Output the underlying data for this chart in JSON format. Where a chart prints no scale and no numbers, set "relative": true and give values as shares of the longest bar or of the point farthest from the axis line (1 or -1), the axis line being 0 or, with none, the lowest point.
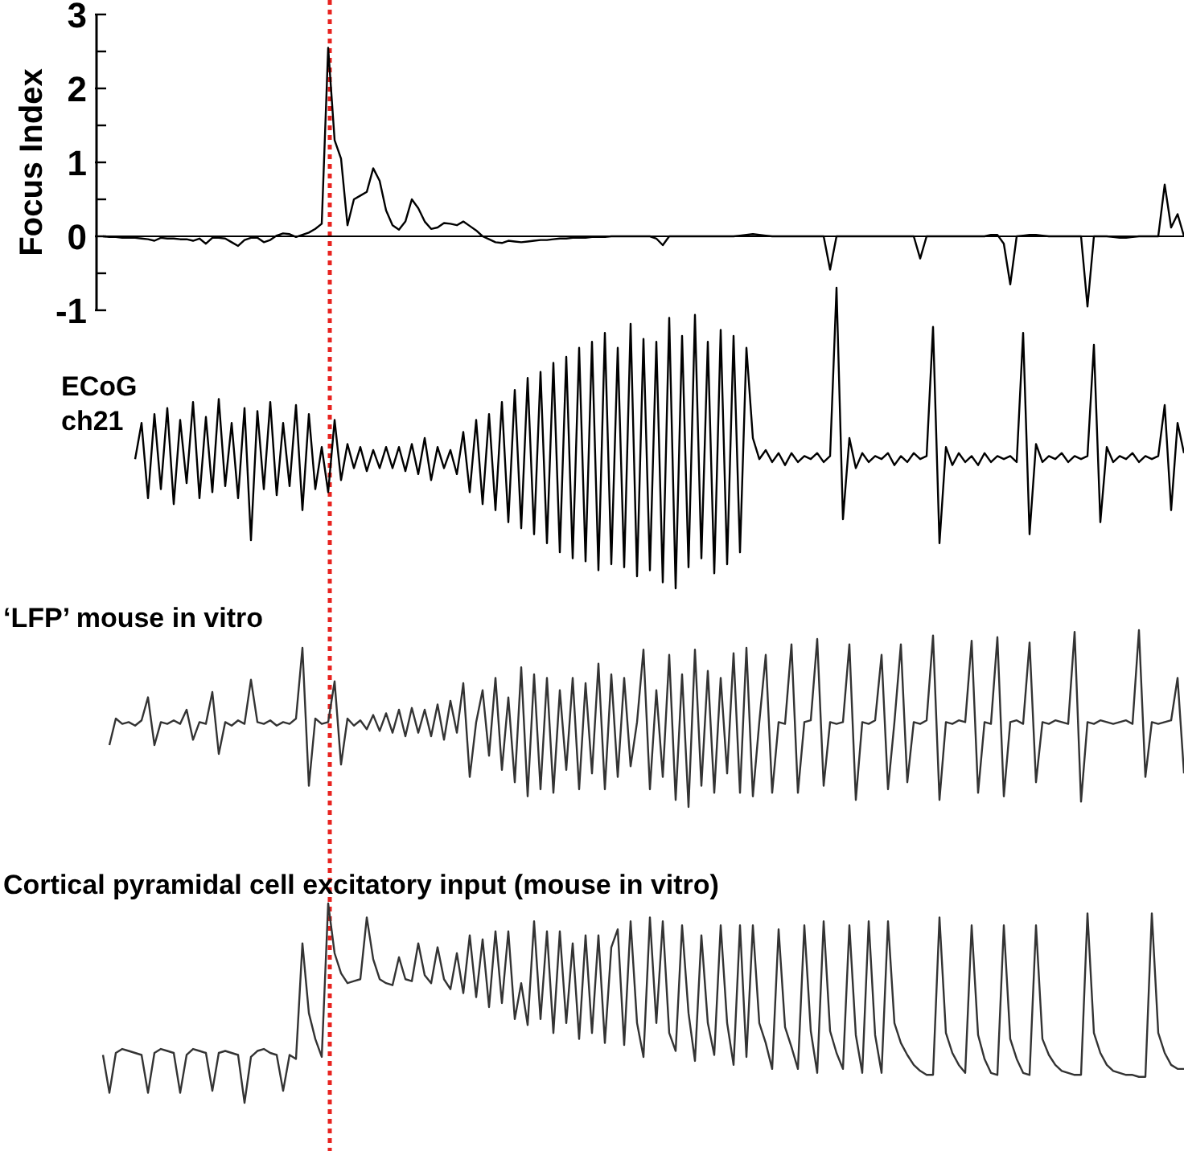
{
  "chart_data": [
    {
      "type": "line",
      "ylabel": "Focus Index",
      "categories": [
        null,
        null,
        null,
        null,
        null,
        null,
        null,
        null,
        null,
        null,
        null,
        null,
        null,
        null,
        null,
        null,
        null,
        null,
        null,
        null,
        null,
        null,
        null,
        null,
        null,
        null,
        null,
        null,
        null,
        null,
        null,
        null,
        null,
        null,
        null,
        null,
        null,
        null,
        null,
        null,
        null,
        null,
        null,
        null,
        null,
        null,
        null,
        null,
        null,
        null,
        null,
        null,
        null,
        null,
        null,
        null,
        null,
        null,
        null,
        null,
        null,
        null,
        null,
        null,
        null,
        null,
        null,
        null,
        null,
        null,
        null,
        null,
        null,
        null,
        null,
        null,
        null,
        null,
        null,
        null,
        null,
        null,
        null,
        null,
        null,
        null,
        null,
        null,
        null,
        null,
        null,
        null,
        null,
        null,
        null,
        null,
        null,
        null,
        null,
        null,
        null,
        null,
        null,
        null,
        null,
        null,
        null,
        null,
        null,
        null,
        null,
        null,
        null,
        null,
        null,
        null,
        null,
        null,
        null,
        null,
        null,
        null,
        null,
        null,
        null,
        null,
        null,
        null,
        null,
        null,
        null,
        null,
        null,
        null,
        null,
        null,
        null,
        null,
        null,
        null,
        null,
        null,
        null,
        null,
        null,
        null,
        null,
        null,
        null,
        null,
        null,
        null,
        null,
        null,
        null,
        null,
        null,
        null,
        null,
        null,
        null,
        null,
        null,
        null,
        null,
        null,
        null,
        null,
        null,
        null
      ],
      "ylim": [
        -1,
        3
      ],
      "yticks": [
        -1,
        {
          "value": -0.5,
          "label": null
        },
        0,
        {
          "value": 0.5,
          "label": null
        },
        1,
        {
          "value": 1.5,
          "label": null
        },
        2,
        {
          "value": 2.5,
          "label": null
        },
        3
      ],
      "tick_labels": "y",
      "series": [
        {
          "color": "#000000",
          "values": [
            null,
            0,
            -0.01,
            -0.01,
            -0.02,
            -0.02,
            -0.02,
            -0.03,
            -0.04,
            -0.06,
            -0.02,
            -0.03,
            -0.03,
            -0.04,
            -0.04,
            -0.06,
            -0.03,
            -0.1,
            -0.02,
            -0.02,
            -0.03,
            -0.08,
            -0.13,
            -0.05,
            -0.02,
            -0.02,
            -0.08,
            -0.05,
            0.01,
            0.04,
            0.03,
            -0.01,
            0.02,
            0.05,
            0.1,
            0.17,
            2.55,
            1.3,
            1.05,
            0.15,
            0.5,
            0.55,
            0.6,
            0.92,
            0.75,
            0.35,
            0.15,
            0.09,
            0.2,
            0.5,
            0.38,
            0.2,
            0.1,
            0.12,
            0.18,
            0.17,
            0.15,
            0.2,
            0.14,
            0.08,
            0,
            -0.04,
            -0.08,
            -0.09,
            -0.06,
            -0.07,
            -0.08,
            -0.07,
            -0.06,
            -0.05,
            -0.05,
            -0.04,
            -0.03,
            -0.03,
            -0.02,
            -0.02,
            -0.02,
            -0.01,
            -0.01,
            -0.01,
            0,
            0,
            0,
            0,
            0,
            0,
            0,
            -0.03,
            -0.12,
            0,
            0,
            0,
            0,
            0,
            0,
            0,
            0,
            0,
            0,
            0,
            0.01,
            0.02,
            0.03,
            0.02,
            0.01,
            0,
            0,
            0,
            0,
            0,
            0,
            0,
            0,
            0,
            -0.45,
            0,
            0,
            0,
            0,
            0,
            0,
            0,
            0,
            0,
            0,
            0,
            0,
            0,
            -0.3,
            0,
            0,
            0,
            0,
            0,
            0,
            0,
            0,
            0,
            0,
            0.02,
            0.02,
            -0.1,
            -0.65,
            0,
            0.01,
            0.02,
            0.02,
            0.01,
            0,
            0,
            0,
            0,
            0,
            0,
            -0.95,
            0,
            0,
            0,
            -0.01,
            -0.02,
            -0.02,
            -0.01,
            0,
            0,
            0,
            0,
            0.7,
            0.12,
            0.3,
            0
          ]
        }
      ]
    },
    {
      "type": "line",
      "title": "ECoG ch21",
      "relative": true,
      "categories": [
        null,
        null,
        null,
        null,
        null,
        null,
        null,
        null,
        null,
        null,
        null,
        null,
        null,
        null,
        null,
        null,
        null,
        null,
        null,
        null,
        null,
        null,
        null,
        null,
        null,
        null,
        null,
        null,
        null,
        null,
        null,
        null,
        null,
        null,
        null,
        null,
        null,
        null,
        null,
        null,
        null,
        null,
        null,
        null,
        null,
        null,
        null,
        null,
        null,
        null,
        null,
        null,
        null,
        null,
        null,
        null,
        null,
        null,
        null,
        null,
        null,
        null,
        null,
        null,
        null,
        null,
        null,
        null,
        null,
        null,
        null,
        null,
        null,
        null,
        null,
        null,
        null,
        null,
        null,
        null,
        null,
        null,
        null,
        null,
        null,
        null,
        null,
        null,
        null,
        null,
        null,
        null,
        null,
        null,
        null,
        null,
        null,
        null,
        null,
        null,
        null,
        null,
        null,
        null,
        null,
        null,
        null,
        null,
        null,
        null,
        null,
        null,
        null,
        null,
        null,
        null,
        null,
        null,
        null,
        null,
        null,
        null,
        null,
        null,
        null,
        null,
        null,
        null,
        null,
        null,
        null,
        null,
        null,
        null,
        null,
        null,
        null,
        null,
        null,
        null,
        null,
        null,
        null,
        null,
        null,
        null,
        null,
        null,
        null,
        null,
        null,
        null,
        null,
        null,
        null,
        null,
        null,
        null,
        null,
        null,
        null,
        null,
        null,
        null,
        null,
        null,
        null,
        null,
        null,
        null
      ],
      "series": [
        {
          "color": "#000000",
          "values": [
            null,
            null,
            null,
            null,
            null,
            null,
            0.43,
            0.55,
            0.3,
            0.58,
            0.33,
            0.6,
            0.28,
            0.56,
            0.35,
            0.62,
            0.3,
            0.57,
            0.32,
            0.63,
            0.34,
            0.55,
            0.3,
            0.6,
            0.16,
            0.59,
            0.33,
            0.62,
            0.31,
            0.55,
            0.34,
            0.61,
            0.26,
            0.58,
            0.33,
            0.47,
            0.32,
            0.56,
            0.36,
            0.48,
            0.4,
            0.47,
            0.39,
            0.46,
            0.4,
            0.47,
            0.4,
            0.47,
            0.39,
            0.48,
            0.38,
            0.5,
            0.36,
            0.47,
            0.4,
            0.46,
            0.38,
            0.52,
            0.32,
            0.56,
            0.28,
            0.58,
            0.26,
            0.62,
            0.22,
            0.66,
            0.2,
            0.7,
            0.18,
            0.72,
            0.15,
            0.75,
            0.12,
            0.77,
            0.1,
            0.8,
            0.09,
            0.82,
            0.06,
            0.85,
            0.08,
            0.8,
            0.07,
            0.88,
            0.04,
            0.83,
            0.06,
            0.82,
            0.02,
            0.9,
            0,
            0.84,
            0.07,
            0.91,
            0.1,
            0.82,
            0.05,
            0.86,
            0.08,
            0.84,
            0.12,
            0.8,
            0.5,
            0.43,
            0.46,
            0.42,
            0.45,
            0.41,
            0.45,
            0.42,
            0.44,
            0.43,
            0.45,
            0.42,
            0.44,
            1,
            0.23,
            0.5,
            0.4,
            0.45,
            0.42,
            0.44,
            0.43,
            0.45,
            0.41,
            0.44,
            0.42,
            0.45,
            0.43,
            0.44,
            0.87,
            0.15,
            0.47,
            0.41,
            0.45,
            0.42,
            0.44,
            0.41,
            0.45,
            0.42,
            0.44,
            0.43,
            0.44,
            0.42,
            0.85,
            0.18,
            0.48,
            0.42,
            0.44,
            0.43,
            0.45,
            0.42,
            0.44,
            0.43,
            0.44,
            0.81,
            0.22,
            0.47,
            0.42,
            0.44,
            0.43,
            0.45,
            0.42,
            0.44,
            0.43,
            0.44,
            0.61,
            0.26,
            0.55,
            0.45
          ]
        }
      ]
    },
    {
      "type": "line",
      "title": "‘LFP’ mouse in vitro",
      "relative": true,
      "categories": [
        null,
        null,
        null,
        null,
        null,
        null,
        null,
        null,
        null,
        null,
        null,
        null,
        null,
        null,
        null,
        null,
        null,
        null,
        null,
        null,
        null,
        null,
        null,
        null,
        null,
        null,
        null,
        null,
        null,
        null,
        null,
        null,
        null,
        null,
        null,
        null,
        null,
        null,
        null,
        null,
        null,
        null,
        null,
        null,
        null,
        null,
        null,
        null,
        null,
        null,
        null,
        null,
        null,
        null,
        null,
        null,
        null,
        null,
        null,
        null,
        null,
        null,
        null,
        null,
        null,
        null,
        null,
        null,
        null,
        null,
        null,
        null,
        null,
        null,
        null,
        null,
        null,
        null,
        null,
        null,
        null,
        null,
        null,
        null,
        null,
        null,
        null,
        null,
        null,
        null,
        null,
        null,
        null,
        null,
        null,
        null,
        null,
        null,
        null,
        null,
        null,
        null,
        null,
        null,
        null,
        null,
        null,
        null,
        null,
        null,
        null,
        null,
        null,
        null,
        null,
        null,
        null,
        null,
        null,
        null,
        null,
        null,
        null,
        null,
        null,
        null,
        null,
        null,
        null,
        null,
        null,
        null,
        null,
        null,
        null,
        null,
        null,
        null,
        null,
        null,
        null,
        null,
        null,
        null,
        null,
        null,
        null,
        null,
        null,
        null,
        null,
        null,
        null,
        null,
        null,
        null,
        null,
        null,
        null,
        null,
        null,
        null,
        null,
        null,
        null,
        null,
        null,
        null,
        null,
        null
      ],
      "series": [
        {
          "color": "#333333",
          "values": [
            null,
            null,
            0.35,
            0.5,
            0.47,
            0.48,
            0.46,
            0.49,
            0.62,
            0.35,
            0.48,
            0.47,
            0.49,
            0.47,
            0.55,
            0.38,
            0.48,
            0.47,
            0.65,
            0.3,
            0.48,
            0.46,
            0.49,
            0.47,
            0.72,
            0.48,
            0.47,
            0.49,
            0.46,
            0.48,
            0.47,
            0.5,
            0.9,
            0.12,
            0.5,
            0.47,
            0.48,
            0.71,
            0.24,
            0.5,
            0.46,
            0.49,
            0.44,
            0.52,
            0.43,
            0.53,
            0.42,
            0.55,
            0.4,
            0.56,
            0.42,
            0.55,
            0.4,
            0.58,
            0.38,
            0.6,
            0.42,
            0.7,
            0.17,
            0.48,
            0.66,
            0.29,
            0.73,
            0.21,
            0.62,
            0.14,
            0.79,
            0.06,
            0.75,
            0.1,
            0.73,
            0.08,
            0.66,
            0.21,
            0.73,
            0.1,
            0.7,
            0.19,
            0.81,
            0.1,
            0.75,
            0.17,
            0.73,
            0.23,
            0.48,
            0.89,
            0.1,
            0.66,
            0.17,
            0.86,
            0.04,
            0.75,
            0,
            0.89,
            0.12,
            0.77,
            0.08,
            0.73,
            0.19,
            0.87,
            0.08,
            0.9,
            0.06,
            0.48,
            0.86,
            0.08,
            0.48,
            0.47,
            0.92,
            0.08,
            0.48,
            0.49,
            0.95,
            0.12,
            0.48,
            0.47,
            0.48,
            0.92,
            0.04,
            0.48,
            0.47,
            0.49,
            0.86,
            0.1,
            0.48,
            0.92,
            0.14,
            0.48,
            0.47,
            0.49,
            0.97,
            0.04,
            0.48,
            0.47,
            0.49,
            0.48,
            0.94,
            0.08,
            0.48,
            0.47,
            0.96,
            0.06,
            0.48,
            0.49,
            0.47,
            0.93,
            0.14,
            0.48,
            0.47,
            0.49,
            0.48,
            0.47,
            0.99,
            0.03,
            0.48,
            0.47,
            0.49,
            0.48,
            0.47,
            0.48,
            0.49,
            0.47,
            1,
            0.17,
            0.48,
            0.47,
            0.48,
            0.49,
            0.73,
            0.19
          ]
        }
      ]
    },
    {
      "type": "line",
      "title": "Cortical pyramidal cell excitatory input (mouse in vitro)",
      "relative": true,
      "categories": [
        null,
        null,
        null,
        null,
        null,
        null,
        null,
        null,
        null,
        null,
        null,
        null,
        null,
        null,
        null,
        null,
        null,
        null,
        null,
        null,
        null,
        null,
        null,
        null,
        null,
        null,
        null,
        null,
        null,
        null,
        null,
        null,
        null,
        null,
        null,
        null,
        null,
        null,
        null,
        null,
        null,
        null,
        null,
        null,
        null,
        null,
        null,
        null,
        null,
        null,
        null,
        null,
        null,
        null,
        null,
        null,
        null,
        null,
        null,
        null,
        null,
        null,
        null,
        null,
        null,
        null,
        null,
        null,
        null,
        null,
        null,
        null,
        null,
        null,
        null,
        null,
        null,
        null,
        null,
        null,
        null,
        null,
        null,
        null,
        null,
        null,
        null,
        null,
        null,
        null,
        null,
        null,
        null,
        null,
        null,
        null,
        null,
        null,
        null,
        null,
        null,
        null,
        null,
        null,
        null,
        null,
        null,
        null,
        null,
        null,
        null,
        null,
        null,
        null,
        null,
        null,
        null,
        null,
        null,
        null,
        null,
        null,
        null,
        null,
        null,
        null,
        null,
        null,
        null,
        null,
        null,
        null,
        null,
        null,
        null,
        null,
        null,
        null,
        null,
        null,
        null,
        null,
        null,
        null,
        null,
        null,
        null,
        null,
        null,
        null,
        null,
        null,
        null,
        null,
        null,
        null,
        null,
        null,
        null,
        null,
        null,
        null,
        null,
        null,
        null,
        null,
        null,
        null,
        null,
        null
      ],
      "series": [
        {
          "color": "#333333",
          "values": [
            null,
            0.24,
            0.05,
            0.25,
            0.27,
            0.26,
            0.25,
            0.24,
            0.05,
            0.25,
            0.27,
            0.26,
            0.25,
            0.05,
            0.24,
            0.27,
            0.26,
            0.25,
            0.06,
            0.25,
            0.26,
            0.25,
            0.24,
            0,
            0.23,
            0.26,
            0.27,
            0.25,
            0.24,
            0.06,
            0.24,
            0.22,
            0.8,
            0.45,
            0.32,
            0.23,
            1,
            0.75,
            0.65,
            0.6,
            0.61,
            0.62,
            0.93,
            0.72,
            0.62,
            0.6,
            0.59,
            0.73,
            0.62,
            0.61,
            0.8,
            0.64,
            0.6,
            0.78,
            0.62,
            0.57,
            0.75,
            0.55,
            0.84,
            0.53,
            0.82,
            0.48,
            0.86,
            0.5,
            0.86,
            0.42,
            0.6,
            0.39,
            0.91,
            0.42,
            0.86,
            0.35,
            0.86,
            0.4,
            0.8,
            0.32,
            0.84,
            0.35,
            0.84,
            0.3,
            0.78,
            0.87,
            0.29,
            0.91,
            0.4,
            0.23,
            0.93,
            0.4,
            0.91,
            0.35,
            0.26,
            0.89,
            0.45,
            0.21,
            0.84,
            0.4,
            0.24,
            0.89,
            0.4,
            0.19,
            0.89,
            0.23,
            0.89,
            0.4,
            0.3,
            0.17,
            0.87,
            0.38,
            0.28,
            0.17,
            0.89,
            0.36,
            0.15,
            0.91,
            0.36,
            0.25,
            0.17,
            0.89,
            0.34,
            0.15,
            0.91,
            0.34,
            0.15,
            0.91,
            0.4,
            0.3,
            0.24,
            0.19,
            0.16,
            0.14,
            0.14,
            0.93,
            0.35,
            0.25,
            0.19,
            0.15,
            0.89,
            0.34,
            0.22,
            0.15,
            0.14,
            0.89,
            0.32,
            0.22,
            0.15,
            0.14,
            0.89,
            0.32,
            0.24,
            0.19,
            0.16,
            0.15,
            0.14,
            0.14,
            0.95,
            0.35,
            0.25,
            0.19,
            0.16,
            0.15,
            0.14,
            0.14,
            0.13,
            0.13,
            0.95,
            0.35,
            0.25,
            0.19,
            0.17,
            0.17
          ]
        }
      ]
    }
  ]
}
